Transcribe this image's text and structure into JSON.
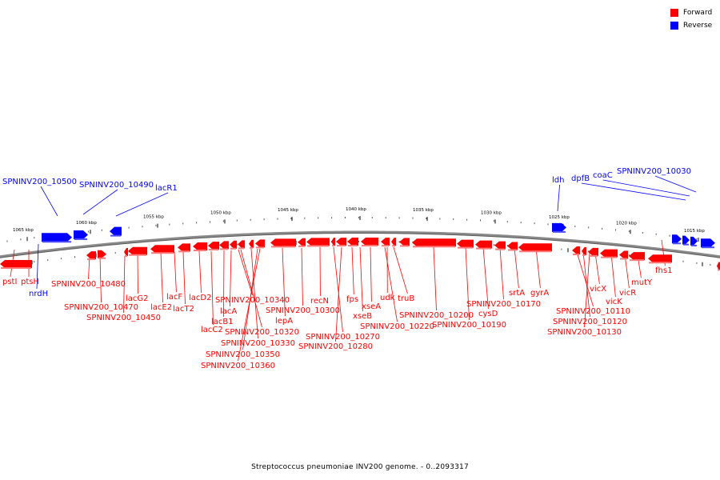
{
  "legend": {
    "forward_label": "Forward",
    "reverse_label": "Reverse",
    "forward_color": "#ff0000",
    "reverse_color": "#0000ff"
  },
  "caption": "Streptococcus pneumoniae INV200 genome. - 0..2093317",
  "chart_data": {
    "type": "circular-genome-map-arc",
    "range": [
      0,
      2093317
    ],
    "tick_labels": [
      "1065 kbp",
      "1060 kbp",
      "1055 kbp",
      "1050 kbp",
      "1045 kbp",
      "1040 kbp",
      "1035 kbp",
      "1030 kbp",
      "1025 kbp",
      "1020 kbp",
      "1015 kbp"
    ],
    "reverse_genes": [
      "SPNINV200_10500",
      "SPNINV200_10490",
      "lacR1",
      "nrdH",
      "ldh",
      "dpfB",
      "coaC",
      "SPNINV200_10030"
    ],
    "forward_genes": [
      "pstI",
      "ptsH",
      "SPNINV200_10480",
      "SPNINV200_10470",
      "SPNINV200_10450",
      "lacG2",
      "lacE2",
      "lacF",
      "lacT2",
      "lacD2",
      "lacC2",
      "lacB1",
      "lacA",
      "SPNINV200_10340",
      "SPNINV200_10320",
      "SPNINV200_10330",
      "SPNINV200_10350",
      "SPNINV200_10360",
      "lepA",
      "SPNINV200_10300",
      "recN",
      "SPNINV200_10270",
      "SPNINV200_10280",
      "fps",
      "xseB",
      "xseA",
      "SPNINV200_10220",
      "udk",
      "truB",
      "SPNINV200_10200",
      "SPNINV200_10190",
      "cysD",
      "SPNINV200_10170",
      "srtA",
      "gyrA",
      "SPNINV200_10110",
      "SPNINV200_10120",
      "SPNINV200_10130",
      "vicX",
      "vicK",
      "vicR",
      "mutY",
      "fhs1"
    ]
  }
}
